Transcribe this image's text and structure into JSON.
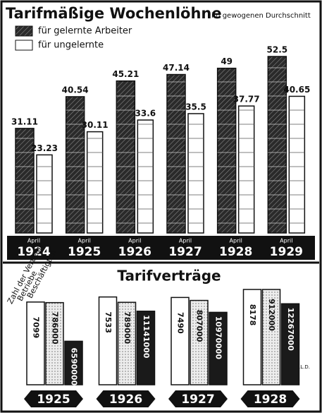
{
  "chart_data": [
    {
      "type": "bar",
      "title": "Tarifmäßige Wochenlöhne",
      "subtitle": "im gewogenen Durchschnitt",
      "months": [
        "April",
        "April",
        "April",
        "April",
        "April",
        "April"
      ],
      "categories": [
        "1924",
        "1925",
        "1926",
        "1927",
        "1928",
        "1929"
      ],
      "legend": "top-left",
      "series": [
        {
          "name": "für gelernte Arbeiter",
          "color": "#2a2a2a",
          "values": [
            31.11,
            40.54,
            45.21,
            47.14,
            49.0,
            52.5
          ]
        },
        {
          "name": "für ungelernte",
          "color": "#ffffff",
          "values": [
            23.23,
            30.11,
            33.6,
            35.5,
            37.77,
            40.65
          ]
        }
      ]
    },
    {
      "type": "bar",
      "title": "Tarifverträge",
      "categories": [
        "1925",
        "1926",
        "1927",
        "1928"
      ],
      "credit": "D.L.D.",
      "series": [
        {
          "name": "Zahl der Verträge",
          "color": "#ffffff",
          "values": [
            7099,
            7533,
            7490,
            8178
          ]
        },
        {
          "name": "Betriebe",
          "color": "#e8e8e8",
          "values": [
            786000,
            789000,
            807000,
            912000
          ]
        },
        {
          "name": "Beschäftigten",
          "color": "#1a1a1a",
          "values": [
            6590000,
            11141000,
            10970000,
            12267000
          ]
        }
      ]
    }
  ]
}
